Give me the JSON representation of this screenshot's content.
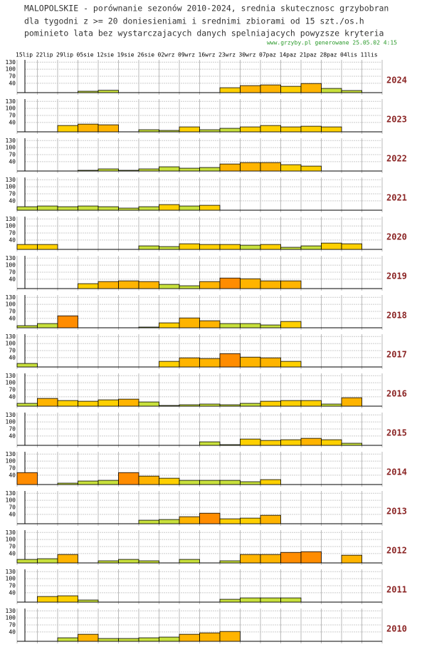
{
  "chart_data": {
    "type": "bar",
    "title": [
      "MALOPOLSKIE - porównanie sezonów 2010-2024, srednia skutecznosc grzybobran",
      "dla tygodni z >= 20 doniesieniami i srednimi zbiorami od 15 szt./os.h",
      "pominieto lata bez wystarczajacych danych spelniajacych powyzsze kryteria"
    ],
    "source": "www.grzyby.pl generowane 25.05.02  4:15",
    "categories": [
      "15lip",
      "22lip",
      "29lip",
      "05sie",
      "12sie",
      "19sie",
      "26sie",
      "02wrz",
      "09wrz",
      "16wrz",
      "23wrz",
      "30wrz",
      "07paz",
      "14paz",
      "21paz",
      "28paz",
      "04lis",
      "11lis"
    ],
    "ylim": [
      0,
      140
    ],
    "yticks": [
      40,
      70,
      100,
      130
    ],
    "grid": true,
    "color_scale": [
      {
        "from": 0,
        "color": "#c8e03c"
      },
      {
        "from": 20,
        "color": "#ffd000"
      },
      {
        "from": 30,
        "color": "#ffb400"
      },
      {
        "from": 45,
        "color": "#ff8c00"
      }
    ],
    "series": [
      {
        "name": "2024",
        "values": [
          null,
          null,
          null,
          6,
          10,
          null,
          null,
          null,
          null,
          null,
          21,
          30,
          33,
          27,
          39,
          18,
          9,
          null
        ]
      },
      {
        "name": "2023",
        "values": [
          null,
          null,
          27,
          33,
          30,
          null,
          9,
          6,
          21,
          9,
          15,
          21,
          27,
          21,
          24,
          21,
          null,
          null
        ]
      },
      {
        "name": "2022",
        "values": [
          null,
          null,
          null,
          3,
          9,
          3,
          9,
          18,
          12,
          15,
          30,
          36,
          36,
          27,
          21,
          null,
          null,
          null
        ]
      },
      {
        "name": "2021",
        "values": [
          15,
          18,
          15,
          18,
          15,
          9,
          15,
          24,
          18,
          21,
          null,
          null,
          null,
          null,
          null,
          null,
          null,
          null
        ]
      },
      {
        "name": "2020",
        "values": [
          21,
          21,
          null,
          null,
          null,
          null,
          15,
          12,
          24,
          21,
          21,
          18,
          21,
          9,
          15,
          27,
          24,
          null
        ]
      },
      {
        "name": "2019",
        "values": [
          null,
          null,
          null,
          21,
          30,
          33,
          30,
          18,
          12,
          30,
          45,
          42,
          33,
          33,
          null,
          null,
          null,
          null
        ]
      },
      {
        "name": "2018",
        "values": [
          9,
          18,
          51,
          null,
          null,
          null,
          3,
          21,
          42,
          30,
          18,
          18,
          12,
          27,
          null,
          null,
          null,
          null
        ]
      },
      {
        "name": "2017",
        "values": [
          15,
          null,
          null,
          null,
          null,
          null,
          null,
          24,
          39,
          36,
          57,
          42,
          39,
          24,
          null,
          null,
          null,
          null
        ]
      },
      {
        "name": "2016",
        "values": [
          12,
          33,
          24,
          21,
          27,
          30,
          18,
          3,
          6,
          9,
          6,
          12,
          21,
          24,
          24,
          9,
          36,
          null
        ]
      },
      {
        "name": "2015",
        "values": [
          null,
          null,
          null,
          null,
          null,
          null,
          null,
          null,
          null,
          15,
          3,
          27,
          21,
          24,
          30,
          24,
          9,
          null
        ]
      },
      {
        "name": "2014",
        "values": [
          51,
          null,
          6,
          15,
          18,
          51,
          36,
          27,
          18,
          18,
          18,
          12,
          21,
          null,
          null,
          null,
          null,
          null
        ]
      },
      {
        "name": "2013",
        "values": [
          null,
          null,
          null,
          null,
          null,
          null,
          15,
          18,
          30,
          45,
          21,
          24,
          36,
          null,
          null,
          null,
          null,
          null
        ]
      },
      {
        "name": "2012",
        "values": [
          15,
          18,
          36,
          null,
          9,
          15,
          9,
          null,
          15,
          null,
          9,
          36,
          36,
          45,
          48,
          null,
          33,
          null
        ]
      },
      {
        "name": "2011",
        "values": [
          null,
          24,
          27,
          9,
          null,
          null,
          null,
          null,
          null,
          null,
          12,
          18,
          18,
          18,
          null,
          null,
          null,
          null
        ]
      },
      {
        "name": "2010",
        "values": [
          null,
          null,
          15,
          30,
          12,
          12,
          15,
          18,
          30,
          36,
          42,
          null,
          null,
          null,
          null,
          null,
          null,
          null
        ]
      }
    ]
  }
}
